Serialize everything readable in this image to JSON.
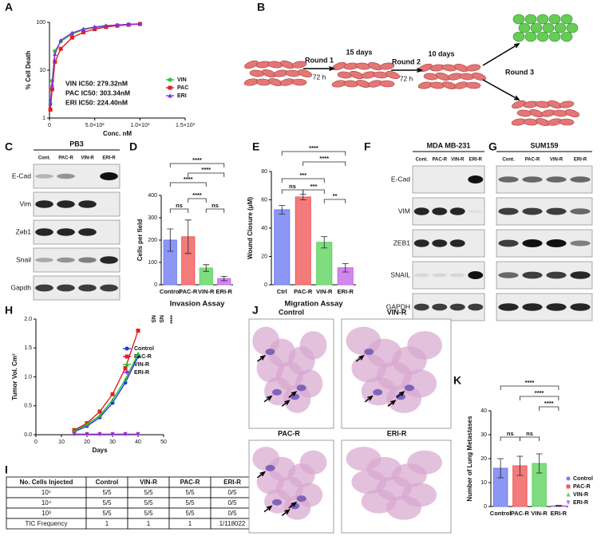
{
  "chart_data": [
    {
      "panel": "A",
      "type": "line",
      "y_label": "% Cell Death",
      "x_label": "Conc. nM",
      "log_y": true,
      "x": [
        10,
        30,
        60,
        125,
        250,
        375,
        500,
        625,
        750,
        875,
        1000
      ],
      "series": [
        {
          "name": "VIN",
          "color": "#22cc22",
          "marker": "circle",
          "values": [
            2,
            6,
            25,
            40,
            57,
            70,
            78,
            83,
            87,
            90,
            93
          ]
        },
        {
          "name": "PAC",
          "color": "#e02020",
          "marker": "square",
          "values": [
            1.5,
            4,
            15,
            28,
            48,
            62,
            72,
            80,
            85,
            89,
            92
          ]
        },
        {
          "name": "ERI",
          "color": "#8a2be2",
          "marker": "triangle",
          "values": [
            2,
            5,
            22,
            42,
            60,
            72,
            80,
            85,
            88,
            91,
            93
          ]
        }
      ],
      "xlim": [
        0,
        1500
      ],
      "xticks": [
        0,
        {
          "value": 500,
          "label": "5.0×10²"
        },
        {
          "value": 1000,
          "label": "1.0×10³"
        },
        {
          "value": 1500,
          "label": "1.5×10³"
        }
      ],
      "ylim": [
        1,
        100
      ],
      "yticks": [
        1,
        10,
        100
      ],
      "annotations": [
        {
          "text": "VIN IC50: 279.32nM",
          "color": "#22dd22"
        },
        {
          "text": "PAC IC50: 303.34nM",
          "color": "#e02020"
        },
        {
          "text": "ERI IC50: 224.40nM",
          "color": "#9a2bd2"
        }
      ],
      "legend": "right"
    },
    {
      "panel": "D",
      "type": "bar",
      "y_label": "Cells per field",
      "x_label": "Invasion Assay",
      "categories": [
        "Control",
        "PAC-R",
        "VIN-R",
        "ERI-R"
      ],
      "values": [
        200,
        215,
        75,
        28
      ],
      "errors": [
        50,
        75,
        15,
        10
      ],
      "colors": [
        "#6f7cf2",
        "#f05a5a",
        "#5fd35f",
        "#c66ae8"
      ],
      "ylim": [
        0,
        400
      ],
      "yticks": [
        0,
        100,
        200,
        300,
        400
      ],
      "brackets": [
        "****",
        "****",
        "****",
        "****",
        "ns",
        "ns"
      ]
    },
    {
      "panel": "E",
      "type": "bar",
      "y_label": "Wound Closure (μM)",
      "x_label": "Migration Assay",
      "categories": [
        "Ctrl",
        "PAC-R",
        "VIN-R",
        "ERI-R"
      ],
      "values": [
        53,
        62,
        30,
        12
      ],
      "errors": [
        3,
        2,
        4,
        3
      ],
      "colors": [
        "#6f7cf2",
        "#f05a5a",
        "#5fd35f",
        "#c66ae8"
      ],
      "ylim": [
        0,
        80
      ],
      "yticks": [
        0,
        20,
        40,
        60,
        80
      ],
      "brackets": [
        "****",
        "****",
        "***",
        "***",
        "**",
        "ns"
      ]
    },
    {
      "panel": "H",
      "type": "line",
      "y_label": "Tumor Vol. Cm³",
      "x_label": "Days",
      "x": [
        15,
        20,
        25,
        30,
        35,
        40
      ],
      "series": [
        {
          "name": "Control",
          "color": "#2233ee",
          "marker": "circle",
          "values": [
            0.05,
            0.15,
            0.3,
            0.55,
            0.9,
            1.35
          ]
        },
        {
          "name": "PAC-R",
          "color": "#e02020",
          "marker": "square",
          "values": [
            0.08,
            0.2,
            0.4,
            0.7,
            1.15,
            1.8
          ]
        },
        {
          "name": "VIN-R",
          "color": "#22bb22",
          "marker": "triangle",
          "values": [
            0.06,
            0.18,
            0.33,
            0.6,
            0.95,
            1.4
          ]
        },
        {
          "name": "ERI-R",
          "color": "#9a2bd2",
          "marker": "triangle-down",
          "values": [
            0.01,
            0.01,
            0.01,
            0.01,
            0.01,
            0.01
          ]
        }
      ],
      "xlim": [
        0,
        50
      ],
      "xticks": [
        0,
        10,
        20,
        30,
        40,
        50
      ],
      "ylim": [
        0,
        2
      ],
      "yticks": [
        {
          "value": 0,
          "label": "0.0"
        },
        {
          "value": 0.5,
          "label": "0.5"
        },
        {
          "value": 1,
          "label": "1.0"
        },
        {
          "value": 1.5,
          "label": "1.5"
        },
        {
          "value": 2,
          "label": "2.0"
        }
      ],
      "annotations": [
        "NS",
        "NS",
        "****"
      ],
      "legend": "right"
    },
    {
      "panel": "K",
      "type": "bar",
      "y_label": "Number of Lung Metastases",
      "categories": [
        "Control",
        "PAC-R",
        "VIN-R",
        "ERI-R"
      ],
      "values": [
        16,
        17,
        18,
        0.3
      ],
      "errors": [
        4,
        4,
        4,
        0.2
      ],
      "colors": [
        "#6f7cf2",
        "#f05a5a",
        "#5fd35f",
        "#c66ae8"
      ],
      "ylim": [
        0,
        40
      ],
      "yticks": [
        0,
        10,
        20,
        30,
        40
      ],
      "brackets": [
        "****",
        "****",
        "****",
        "ns",
        "ns"
      ],
      "legend": "right"
    }
  ],
  "diagram": {
    "panel": "B",
    "steps": [
      {
        "label": "Round 1",
        "time": "72 h"
      },
      {
        "label": "Round 2",
        "time": "72 h"
      },
      {
        "label": "Round 3"
      }
    ],
    "durations": [
      "15 days",
      "10 days"
    ]
  },
  "blots": [
    {
      "panel": "C",
      "title": "PB3",
      "lanes": [
        "Cont.",
        "PAC-R",
        "VIN-R",
        "ERI-R"
      ],
      "rows": [
        "E-Cad",
        "Vim",
        "Zeb1",
        "Snail",
        "Gapdh"
      ]
    },
    {
      "panel": "F",
      "title": "MDA MB-231",
      "lanes": [
        "Cont.",
        "PAC-R",
        "VIN-R",
        "ERI-R"
      ],
      "rows": [
        "E-Cad",
        "VIM",
        "ZEB1",
        "SNAIL",
        "GAPDH"
      ]
    },
    {
      "panel": "G",
      "title": "SUM159",
      "lanes": [
        "Cont.",
        "PAC-R",
        "VIN-R",
        "ERI-R"
      ]
    }
  ],
  "table": {
    "panel": "I",
    "header": [
      "No. Cells Injected",
      "Control",
      "VIN-R",
      "PAC-R",
      "ERI-R"
    ],
    "rows": [
      [
        "10⁵",
        "5/5",
        "5/5",
        "5/5",
        "0/5"
      ],
      [
        "10⁴",
        "5/5",
        "5/5",
        "5/5",
        "0/5"
      ],
      [
        "10³",
        "5/5",
        "5/5",
        "5/5",
        "0/5"
      ],
      [
        "TIC Frequency",
        "1",
        "1",
        "1",
        "1/118022"
      ]
    ]
  },
  "histology": {
    "panel": "J",
    "labels": [
      "Control",
      "VIN-R",
      "PAC-R",
      "ERI-R"
    ]
  }
}
